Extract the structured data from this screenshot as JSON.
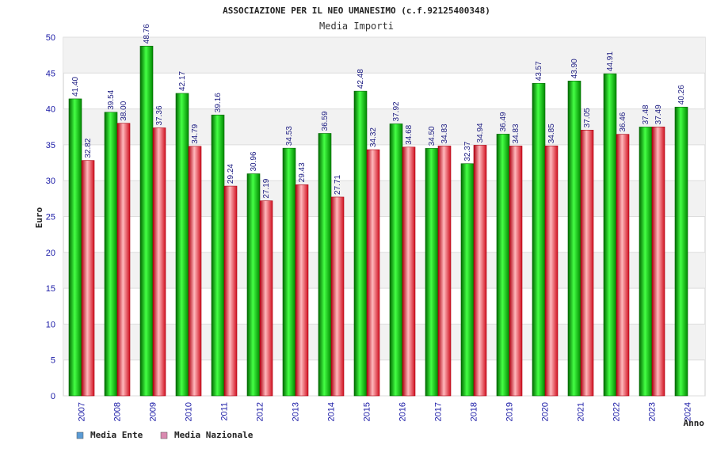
{
  "chart_data": {
    "type": "bar",
    "title": "ASSOCIAZIONE PER IL NEO UMANESIMO (c.f.92125400348)",
    "subtitle": "Media Importi",
    "xlabel": "Anno",
    "ylabel": "Euro",
    "ylim": [
      0,
      50
    ],
    "yticks": [
      0,
      5,
      10,
      15,
      20,
      25,
      30,
      35,
      40,
      45,
      50
    ],
    "grid": true,
    "legend_position": "bottom-left",
    "categories": [
      "2007",
      "2008",
      "2009",
      "2010",
      "2011",
      "2012",
      "2013",
      "2014",
      "2015",
      "2016",
      "2017",
      "2018",
      "2019",
      "2020",
      "2021",
      "2022",
      "2023",
      "2024"
    ],
    "series": [
      {
        "name": "Media Ente",
        "color": "#00c000",
        "legend_color": "#5b9bd5",
        "values": [
          41.4,
          39.54,
          48.76,
          42.17,
          39.16,
          30.96,
          34.53,
          36.59,
          42.48,
          37.92,
          34.5,
          32.37,
          36.49,
          43.57,
          43.9,
          44.91,
          37.48,
          40.26
        ],
        "labels": [
          "41.40",
          "39.54",
          "48.76",
          "42.17",
          "39.16",
          "30.96",
          "34.53",
          "36.59",
          "42.48",
          "37.92",
          "34.50",
          "32.37",
          "36.49",
          "43.57",
          "43.90",
          "44.91",
          "37.48",
          "40.26"
        ]
      },
      {
        "name": "Media Nazionale",
        "color": "#e0202a",
        "legend_color": "#d98ab0",
        "values": [
          32.82,
          38.0,
          37.36,
          34.79,
          29.24,
          27.19,
          29.43,
          27.71,
          34.32,
          34.68,
          34.83,
          34.94,
          34.83,
          34.85,
          37.05,
          36.46,
          37.49,
          null
        ],
        "labels": [
          "32.82",
          "38.00",
          "37.36",
          "34.79",
          "29.24",
          "27.19",
          "29.43",
          "27.71",
          "34.32",
          "34.68",
          "34.83",
          "34.94",
          "34.83",
          "34.85",
          "37.05",
          "36.46",
          "37.49",
          null
        ]
      }
    ]
  }
}
